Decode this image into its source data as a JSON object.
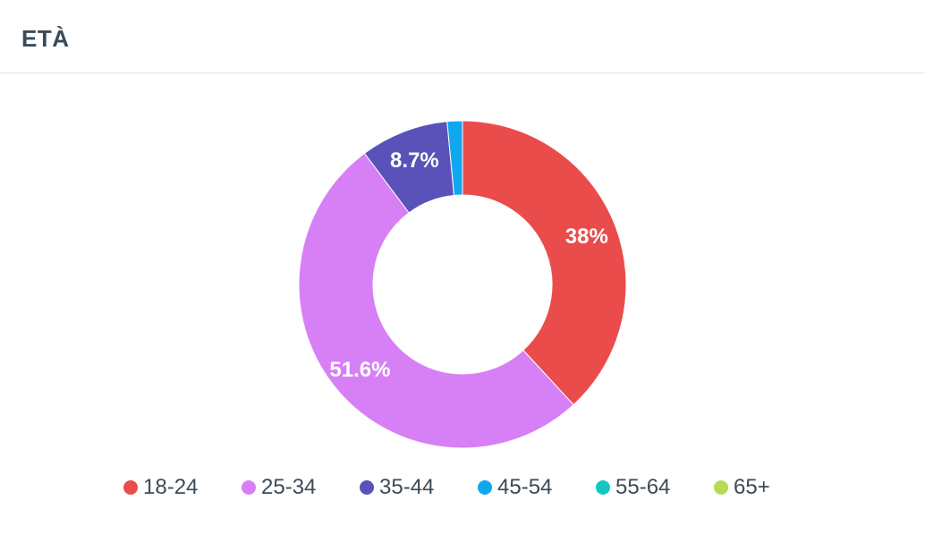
{
  "header": {
    "title": "ETÀ"
  },
  "chart_data": {
    "type": "pie",
    "variant": "donut",
    "categories": [
      "18-24",
      "25-34",
      "35-44",
      "45-54",
      "55-64",
      "65+"
    ],
    "values": [
      38.1,
      51.6,
      8.7,
      1.5,
      0,
      0
    ],
    "data_labels": [
      "38%",
      "51.6%",
      "8.7%",
      "",
      "",
      ""
    ],
    "colors": [
      "#ea4c4c",
      "#d780f5",
      "#5a52b8",
      "#0fa8f0",
      "#15c7c0",
      "#b6dc55"
    ],
    "legend_position": "bottom"
  }
}
